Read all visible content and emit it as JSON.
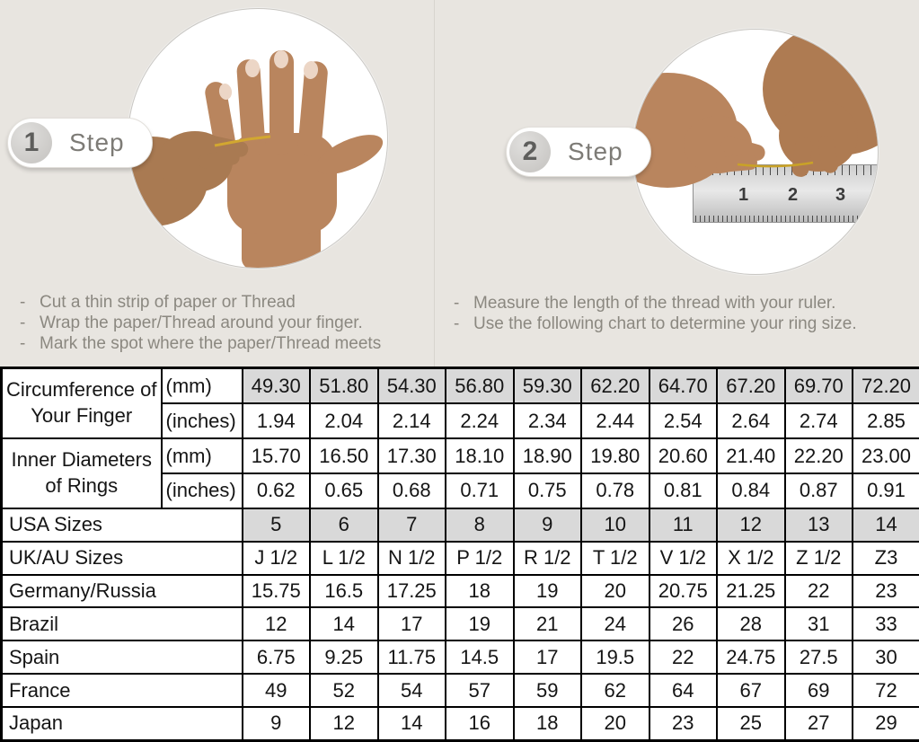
{
  "colors": {
    "page_bg": "#e8e5e0",
    "shaded_cell": "#d9d9d9",
    "table_border": "#000000",
    "instruction_text": "#8b8880",
    "thread_gold": "#c9a227",
    "skin_tone": "#b9855e"
  },
  "bullet": "-",
  "steps": [
    {
      "number": "1",
      "label": "Step",
      "instructions": [
        "Cut a thin strip of paper or Thread",
        "Wrap the paper/Thread around your finger.",
        "Mark the spot where the paper/Thread meets"
      ]
    },
    {
      "number": "2",
      "label": "Step",
      "instructions": [
        "Measure the length of the thread with your ruler.",
        "Use the following chart to determine your ring size."
      ],
      "ruler": [
        "1",
        "2",
        "3"
      ]
    }
  ],
  "table": {
    "row_groups": [
      {
        "label": "Circumference of Your Finger",
        "sub": [
          {
            "unit": "(mm)",
            "shaded": true,
            "values": [
              "49.30",
              "51.80",
              "54.30",
              "56.80",
              "59.30",
              "62.20",
              "64.70",
              "67.20",
              "69.70",
              "72.20"
            ]
          },
          {
            "unit": "(inches)",
            "shaded": false,
            "values": [
              "1.94",
              "2.04",
              "2.14",
              "2.24",
              "2.34",
              "2.44",
              "2.54",
              "2.64",
              "2.74",
              "2.85"
            ]
          }
        ]
      },
      {
        "label": "Inner Diameters of Rings",
        "sub": [
          {
            "unit": "(mm)",
            "shaded": false,
            "values": [
              "15.70",
              "16.50",
              "17.30",
              "18.10",
              "18.90",
              "19.80",
              "20.60",
              "21.40",
              "22.20",
              "23.00"
            ]
          },
          {
            "unit": "(inches)",
            "shaded": false,
            "values": [
              "0.62",
              "0.65",
              "0.68",
              "0.71",
              "0.75",
              "0.78",
              "0.81",
              "0.84",
              "0.87",
              "0.91"
            ]
          }
        ]
      }
    ],
    "simple_rows": [
      {
        "label": "USA Sizes",
        "shaded": true,
        "values": [
          "5",
          "6",
          "7",
          "8",
          "9",
          "10",
          "11",
          "12",
          "13",
          "14"
        ]
      },
      {
        "label": "UK/AU Sizes",
        "shaded": false,
        "values": [
          "J 1/2",
          "L 1/2",
          "N 1/2",
          "P 1/2",
          "R 1/2",
          "T 1/2",
          "V 1/2",
          "X 1/2",
          "Z 1/2",
          "Z3"
        ]
      },
      {
        "label": "Germany/Russia",
        "shaded": false,
        "values": [
          "15.75",
          "16.5",
          "17.25",
          "18",
          "19",
          "20",
          "20.75",
          "21.25",
          "22",
          "23"
        ]
      },
      {
        "label": "Brazil",
        "shaded": false,
        "values": [
          "12",
          "14",
          "17",
          "19",
          "21",
          "24",
          "26",
          "28",
          "31",
          "33"
        ]
      },
      {
        "label": "Spain",
        "shaded": false,
        "values": [
          "6.75",
          "9.25",
          "11.75",
          "14.5",
          "17",
          "19.5",
          "22",
          "24.75",
          "27.5",
          "30"
        ]
      },
      {
        "label": "France",
        "shaded": false,
        "values": [
          "49",
          "52",
          "54",
          "57",
          "59",
          "62",
          "64",
          "67",
          "69",
          "72"
        ]
      },
      {
        "label": "Japan",
        "shaded": false,
        "values": [
          "9",
          "12",
          "14",
          "16",
          "18",
          "20",
          "23",
          "25",
          "27",
          "29"
        ]
      }
    ]
  }
}
